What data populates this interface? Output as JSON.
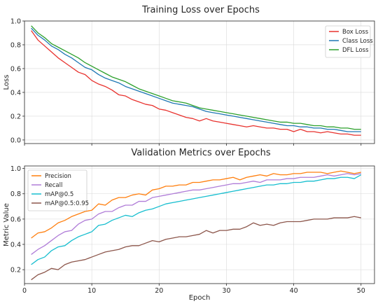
{
  "chart_data": [
    {
      "type": "line",
      "title": "Training Loss over Epochs",
      "xlabel": "",
      "ylabel": "Loss",
      "xlim": [
        0,
        52
      ],
      "ylim": [
        -0.03,
        1.0
      ],
      "xticks": [
        0,
        10,
        20,
        30,
        40,
        50
      ],
      "yticks": [
        0.0,
        0.2,
        0.4,
        0.6,
        0.8,
        1.0
      ],
      "xtick_labels_visible": false,
      "grid": true,
      "legend": "top-right",
      "x": [
        1,
        2,
        3,
        4,
        5,
        6,
        7,
        8,
        9,
        10,
        11,
        12,
        13,
        14,
        15,
        16,
        17,
        18,
        19,
        20,
        21,
        22,
        23,
        24,
        25,
        26,
        27,
        28,
        29,
        30,
        31,
        32,
        33,
        34,
        35,
        36,
        37,
        38,
        39,
        40,
        41,
        42,
        43,
        44,
        45,
        46,
        47,
        48,
        49,
        50
      ],
      "series": [
        {
          "name": "Box Loss",
          "color": "#e8322e",
          "values": [
            0.92,
            0.84,
            0.79,
            0.74,
            0.69,
            0.65,
            0.61,
            0.57,
            0.55,
            0.5,
            0.47,
            0.45,
            0.42,
            0.38,
            0.37,
            0.34,
            0.32,
            0.3,
            0.29,
            0.26,
            0.25,
            0.23,
            0.21,
            0.19,
            0.18,
            0.16,
            0.18,
            0.16,
            0.15,
            0.14,
            0.13,
            0.12,
            0.11,
            0.12,
            0.11,
            0.1,
            0.1,
            0.09,
            0.09,
            0.07,
            0.09,
            0.07,
            0.07,
            0.06,
            0.07,
            0.06,
            0.05,
            0.05,
            0.04,
            0.04
          ]
        },
        {
          "name": "Class Loss",
          "color": "#1f77b4",
          "values": [
            0.94,
            0.88,
            0.84,
            0.79,
            0.76,
            0.72,
            0.69,
            0.65,
            0.61,
            0.59,
            0.55,
            0.52,
            0.5,
            0.48,
            0.45,
            0.43,
            0.41,
            0.39,
            0.37,
            0.35,
            0.33,
            0.31,
            0.3,
            0.29,
            0.28,
            0.26,
            0.24,
            0.23,
            0.22,
            0.21,
            0.2,
            0.19,
            0.18,
            0.17,
            0.16,
            0.15,
            0.14,
            0.13,
            0.12,
            0.12,
            0.11,
            0.11,
            0.1,
            0.1,
            0.09,
            0.09,
            0.08,
            0.07,
            0.07,
            0.07
          ]
        },
        {
          "name": "DFL Loss",
          "color": "#2ca02c",
          "values": [
            0.96,
            0.9,
            0.86,
            0.81,
            0.78,
            0.75,
            0.72,
            0.69,
            0.65,
            0.62,
            0.59,
            0.56,
            0.53,
            0.51,
            0.49,
            0.46,
            0.43,
            0.41,
            0.39,
            0.37,
            0.35,
            0.33,
            0.32,
            0.31,
            0.29,
            0.27,
            0.26,
            0.25,
            0.24,
            0.23,
            0.22,
            0.21,
            0.2,
            0.19,
            0.18,
            0.17,
            0.16,
            0.15,
            0.15,
            0.14,
            0.14,
            0.13,
            0.12,
            0.12,
            0.11,
            0.11,
            0.1,
            0.1,
            0.09,
            0.09
          ]
        }
      ]
    },
    {
      "type": "line",
      "title": "Validation Metrics over Epochs",
      "xlabel": "Epoch",
      "ylabel": "Metric Value",
      "xlim": [
        0,
        52
      ],
      "ylim": [
        0.09,
        1.02
      ],
      "xticks": [
        0,
        10,
        20,
        30,
        40,
        50
      ],
      "yticks": [
        0.2,
        0.4,
        0.6,
        0.8,
        1.0
      ],
      "grid": true,
      "legend": "top-left",
      "x": [
        1,
        2,
        3,
        4,
        5,
        6,
        7,
        8,
        9,
        10,
        11,
        12,
        13,
        14,
        15,
        16,
        17,
        18,
        19,
        20,
        21,
        22,
        23,
        24,
        25,
        26,
        27,
        28,
        29,
        30,
        31,
        32,
        33,
        34,
        35,
        36,
        37,
        38,
        39,
        40,
        41,
        42,
        43,
        44,
        45,
        46,
        47,
        48,
        49,
        50
      ],
      "series": [
        {
          "name": "Precision",
          "color": "#ff7f0e",
          "values": [
            0.45,
            0.49,
            0.5,
            0.53,
            0.57,
            0.59,
            0.62,
            0.64,
            0.66,
            0.67,
            0.72,
            0.71,
            0.75,
            0.77,
            0.77,
            0.79,
            0.8,
            0.79,
            0.83,
            0.84,
            0.86,
            0.86,
            0.87,
            0.87,
            0.89,
            0.89,
            0.9,
            0.91,
            0.91,
            0.92,
            0.93,
            0.91,
            0.93,
            0.94,
            0.95,
            0.94,
            0.96,
            0.95,
            0.95,
            0.96,
            0.96,
            0.97,
            0.97,
            0.97,
            0.96,
            0.97,
            0.98,
            0.97,
            0.96,
            0.97
          ]
        },
        {
          "name": "Recall",
          "color": "#b07dd8",
          "values": [
            0.32,
            0.36,
            0.39,
            0.43,
            0.47,
            0.5,
            0.51,
            0.56,
            0.59,
            0.6,
            0.64,
            0.66,
            0.66,
            0.69,
            0.71,
            0.71,
            0.74,
            0.74,
            0.77,
            0.78,
            0.79,
            0.8,
            0.81,
            0.82,
            0.83,
            0.83,
            0.84,
            0.85,
            0.86,
            0.87,
            0.88,
            0.88,
            0.89,
            0.9,
            0.89,
            0.91,
            0.91,
            0.91,
            0.92,
            0.92,
            0.93,
            0.93,
            0.93,
            0.94,
            0.95,
            0.94,
            0.95,
            0.96,
            0.95,
            0.96
          ]
        },
        {
          "name": "mAP@0.5",
          "color": "#17becf",
          "values": [
            0.24,
            0.28,
            0.3,
            0.35,
            0.38,
            0.39,
            0.43,
            0.46,
            0.48,
            0.5,
            0.55,
            0.56,
            0.59,
            0.61,
            0.63,
            0.62,
            0.65,
            0.67,
            0.68,
            0.7,
            0.72,
            0.73,
            0.74,
            0.75,
            0.76,
            0.77,
            0.78,
            0.79,
            0.8,
            0.81,
            0.82,
            0.83,
            0.84,
            0.85,
            0.86,
            0.87,
            0.87,
            0.88,
            0.88,
            0.89,
            0.89,
            0.9,
            0.9,
            0.91,
            0.92,
            0.92,
            0.93,
            0.93,
            0.92,
            0.95
          ]
        },
        {
          "name": "mAP@0.5:0.95",
          "color": "#8c564b",
          "values": [
            0.12,
            0.16,
            0.18,
            0.21,
            0.2,
            0.24,
            0.26,
            0.27,
            0.28,
            0.3,
            0.32,
            0.34,
            0.35,
            0.36,
            0.38,
            0.39,
            0.39,
            0.41,
            0.43,
            0.42,
            0.44,
            0.45,
            0.46,
            0.46,
            0.47,
            0.48,
            0.51,
            0.49,
            0.51,
            0.51,
            0.52,
            0.52,
            0.54,
            0.57,
            0.55,
            0.56,
            0.55,
            0.57,
            0.58,
            0.58,
            0.58,
            0.59,
            0.6,
            0.6,
            0.6,
            0.61,
            0.61,
            0.61,
            0.62,
            0.61
          ]
        }
      ]
    }
  ]
}
